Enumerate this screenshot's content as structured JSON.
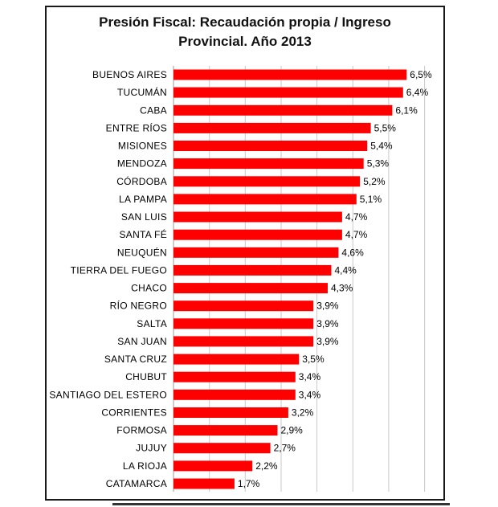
{
  "chart_data": {
    "type": "bar",
    "orientation": "horizontal",
    "title_lines": [
      "Presión Fiscal: Recaudación propia / Ingreso",
      "Provincial. Año 2013"
    ],
    "categories": [
      "BUENOS AIRES",
      "TUCUMÁN",
      "CABA",
      "ENTRE RÍOS",
      "MISIONES",
      "MENDOZA",
      "CÓRDOBA",
      "LA PAMPA",
      "SAN LUIS",
      "SANTA FÉ",
      "NEUQUÉN",
      "TIERRA DEL FUEGO",
      "CHACO",
      "RÍO NEGRO",
      "SALTA",
      "SAN JUAN",
      "SANTA CRUZ",
      "CHUBUT",
      "SANTIAGO DEL ESTERO",
      "CORRIENTES",
      "FORMOSA",
      "JUJUY",
      "LA RIOJA",
      "CATAMARCA"
    ],
    "values": [
      6.5,
      6.4,
      6.1,
      5.5,
      5.4,
      5.3,
      5.2,
      5.1,
      4.7,
      4.7,
      4.6,
      4.4,
      4.3,
      3.9,
      3.9,
      3.9,
      3.5,
      3.4,
      3.4,
      3.2,
      2.9,
      2.7,
      2.2,
      1.7
    ],
    "value_labels": [
      "6,5%",
      "6,4%",
      "6,1%",
      "5,5%",
      "5,4%",
      "5,3%",
      "5,2%",
      "5,1%",
      "4,7%",
      "4,7%",
      "4,6%",
      "4,4%",
      "4,3%",
      "3,9%",
      "3,9%",
      "3,9%",
      "3,5%",
      "3,4%",
      "3,4%",
      "3,2%",
      "2,9%",
      "2,7%",
      "2,2%",
      "1,7%"
    ],
    "xlim": [
      0,
      7.3
    ],
    "grid": true,
    "legend": "none",
    "bar_color": "#ff0000",
    "grid_color": "#c8c8c8"
  }
}
